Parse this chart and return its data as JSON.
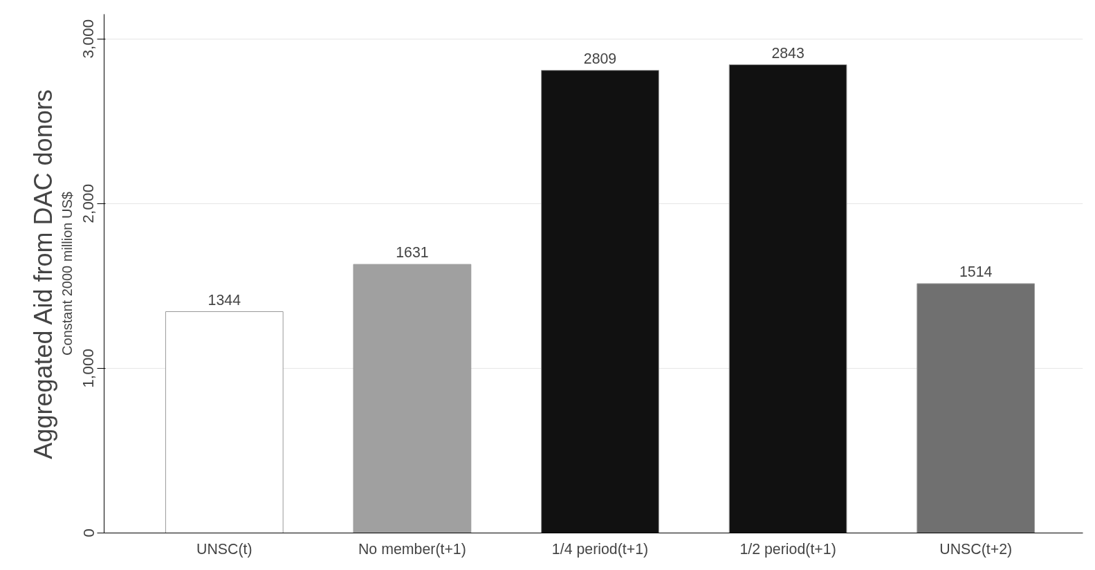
{
  "chart_data": {
    "type": "bar",
    "ylabel": "Aggregated Aid from DAC donors",
    "annotations": [
      "Constant 2000 million US$"
    ],
    "categories": [
      "UNSC(t)",
      "No member(t+1)",
      "1/4 period(t+1)",
      "1/2 period(t+1)",
      "UNSC(t+2)"
    ],
    "values": [
      1344,
      1631,
      2809,
      2843,
      1514
    ],
    "colors": [
      "#ffffff",
      "#a0a0a0",
      "#111111",
      "#111111",
      "#707070"
    ],
    "ylim": [
      0,
      3150
    ],
    "yticks": [
      0,
      {
        "value": 1000,
        "label": "1,000"
      },
      {
        "value": 2000,
        "label": "2,000"
      },
      {
        "value": 3000,
        "label": "3,000"
      }
    ],
    "grid": "y",
    "data_labels": true
  }
}
